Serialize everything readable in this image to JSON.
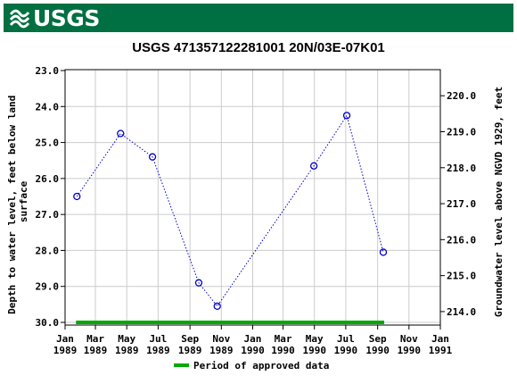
{
  "header": {
    "logo_text": "USGS",
    "brand_color": "#006f41"
  },
  "chart_data": {
    "type": "scatter",
    "title": "USGS 471357122281001 20N/03E-07K01",
    "ylabel_left": "Depth to water level, feet below land surface",
    "ylabel_left_lines": [
      "Depth to water level, feet below land",
      "surface"
    ],
    "ylabel_right": "Groundwater level above NGVD 1929, feet",
    "ylim_left": [
      30.0,
      23.0
    ],
    "y_inverted": true,
    "yticks_left": [
      "23.0",
      "24.0",
      "25.0",
      "26.0",
      "27.0",
      "28.0",
      "29.0",
      "30.0"
    ],
    "yticks_right": [
      "214.0",
      "215.0",
      "216.0",
      "217.0",
      "218.0",
      "219.0",
      "220.0"
    ],
    "xticks": [
      {
        "line1": "Jan",
        "line2": "1989"
      },
      {
        "line1": "Mar",
        "line2": "1989"
      },
      {
        "line1": "May",
        "line2": "1989"
      },
      {
        "line1": "Jul",
        "line2": "1989"
      },
      {
        "line1": "Sep",
        "line2": "1989"
      },
      {
        "line1": "Nov",
        "line2": "1989"
      },
      {
        "line1": "Jan",
        "line2": "1990"
      },
      {
        "line1": "Mar",
        "line2": "1990"
      },
      {
        "line1": "May",
        "line2": "1990"
      },
      {
        "line1": "Jul",
        "line2": "1990"
      },
      {
        "line1": "Sep",
        "line2": "1990"
      },
      {
        "line1": "Nov",
        "line2": "1990"
      },
      {
        "line1": "Jan",
        "line2": "1991"
      }
    ],
    "series": [
      {
        "points": [
          {
            "x": "1989-01-24",
            "y": 26.5
          },
          {
            "x": "1989-04-19",
            "y": 24.75
          },
          {
            "x": "1989-06-20",
            "y": 25.4
          },
          {
            "x": "1989-09-18",
            "y": 28.9
          },
          {
            "x": "1989-10-24",
            "y": 29.55
          },
          {
            "x": "1990-04-30",
            "y": 25.65
          },
          {
            "x": "1990-07-03",
            "y": 24.25
          },
          {
            "x": "1990-09-12",
            "y": 28.05
          }
        ],
        "color": "#0000cc",
        "line_style": "dotted",
        "marker": "open-circle"
      }
    ],
    "approved_period": {
      "start": "1989-01-24",
      "end": "1990-09-12",
      "color": "#00aa00"
    },
    "legend": {
      "label": "Period of approved data",
      "placement": "bottom-center"
    },
    "grid": true
  }
}
